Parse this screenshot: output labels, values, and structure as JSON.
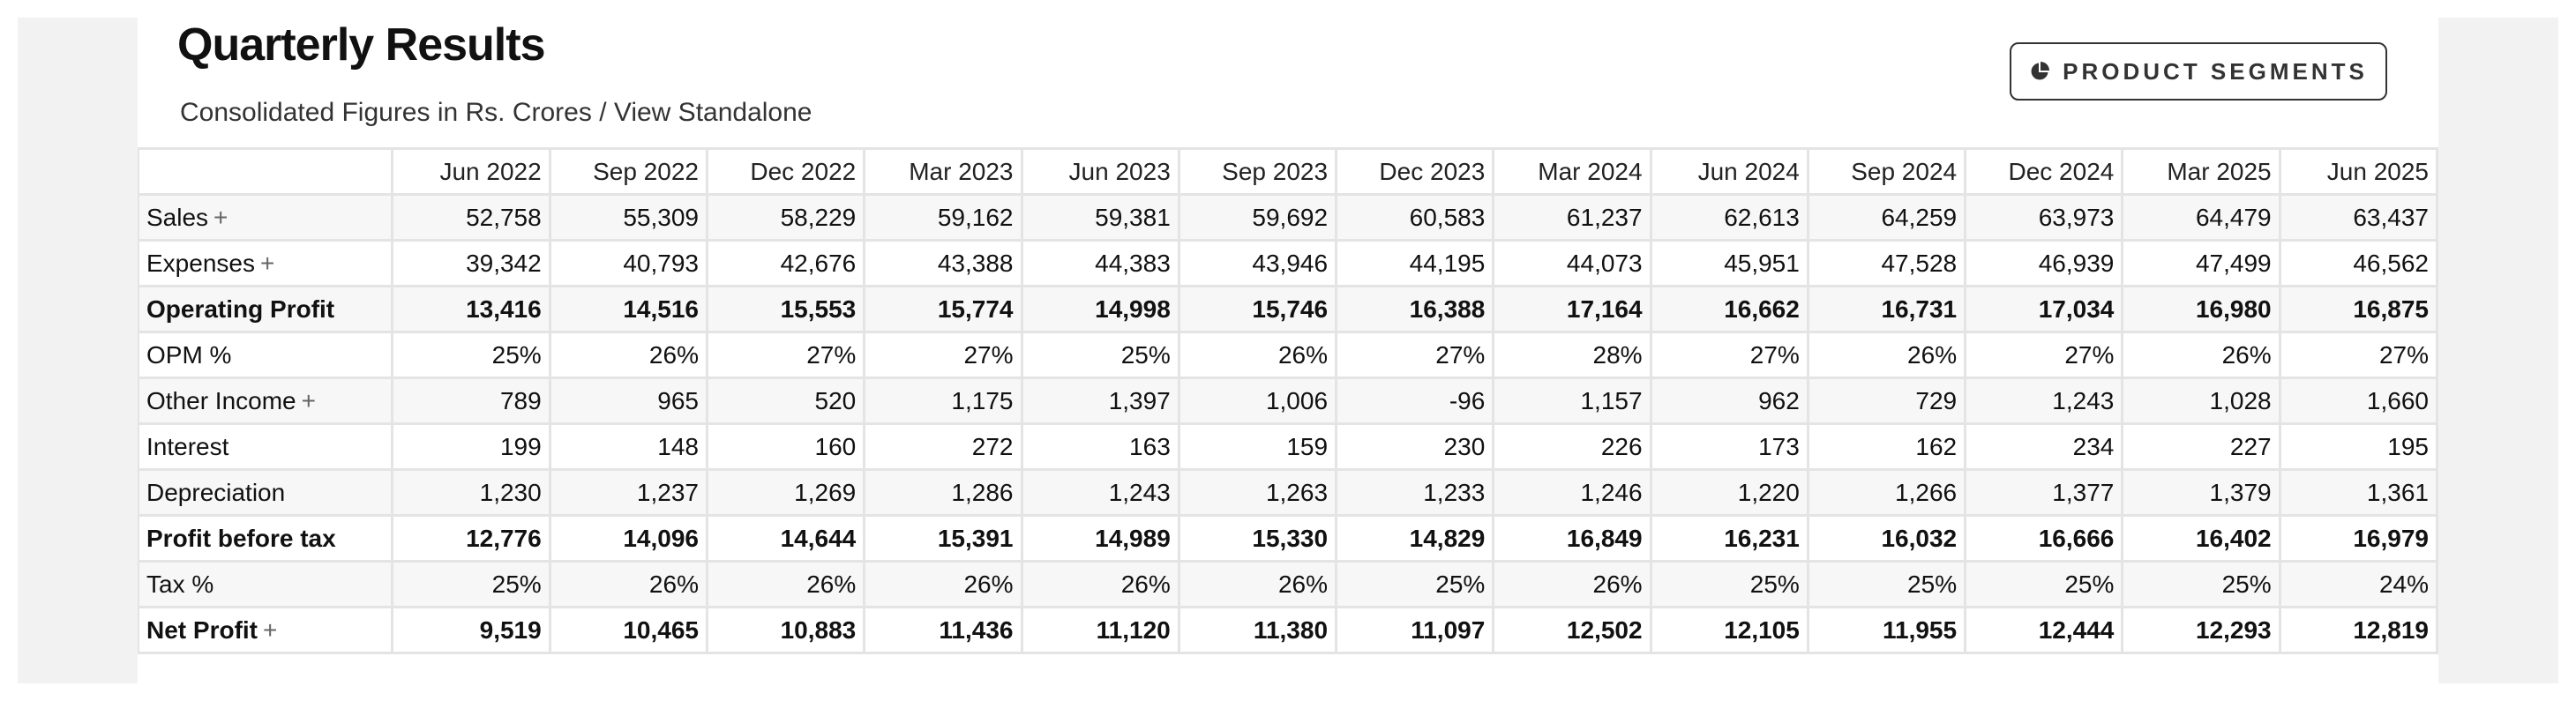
{
  "header": {
    "title": "Quarterly Results",
    "subtitle": "Consolidated Figures in Rs. Crores / View Standalone",
    "segments_button": "PRODUCT SEGMENTS",
    "segments_icon": "pie-chart-icon"
  },
  "table": {
    "columns": [
      "Jun 2022",
      "Sep 2022",
      "Dec 2022",
      "Mar 2023",
      "Jun 2023",
      "Sep 2023",
      "Dec 2023",
      "Mar 2024",
      "Jun 2024",
      "Sep 2024",
      "Dec 2024",
      "Mar 2025",
      "Jun 2025"
    ],
    "rows": [
      {
        "label": "Sales",
        "expand": "+",
        "bold": false,
        "values": [
          "52,758",
          "55,309",
          "58,229",
          "59,162",
          "59,381",
          "59,692",
          "60,583",
          "61,237",
          "62,613",
          "64,259",
          "63,973",
          "64,479",
          "63,437"
        ]
      },
      {
        "label": "Expenses",
        "expand": "+",
        "bold": false,
        "values": [
          "39,342",
          "40,793",
          "42,676",
          "43,388",
          "44,383",
          "43,946",
          "44,195",
          "44,073",
          "45,951",
          "47,528",
          "46,939",
          "47,499",
          "46,562"
        ]
      },
      {
        "label": "Operating Profit",
        "expand": "",
        "bold": true,
        "values": [
          "13,416",
          "14,516",
          "15,553",
          "15,774",
          "14,998",
          "15,746",
          "16,388",
          "17,164",
          "16,662",
          "16,731",
          "17,034",
          "16,980",
          "16,875"
        ]
      },
      {
        "label": "OPM %",
        "expand": "",
        "bold": false,
        "values": [
          "25%",
          "26%",
          "27%",
          "27%",
          "25%",
          "26%",
          "27%",
          "28%",
          "27%",
          "26%",
          "27%",
          "26%",
          "27%"
        ]
      },
      {
        "label": "Other Income",
        "expand": "+",
        "bold": false,
        "values": [
          "789",
          "965",
          "520",
          "1,175",
          "1,397",
          "1,006",
          "-96",
          "1,157",
          "962",
          "729",
          "1,243",
          "1,028",
          "1,660"
        ]
      },
      {
        "label": "Interest",
        "expand": "",
        "bold": false,
        "values": [
          "199",
          "148",
          "160",
          "272",
          "163",
          "159",
          "230",
          "226",
          "173",
          "162",
          "234",
          "227",
          "195"
        ]
      },
      {
        "label": "Depreciation",
        "expand": "",
        "bold": false,
        "values": [
          "1,230",
          "1,237",
          "1,269",
          "1,286",
          "1,243",
          "1,263",
          "1,233",
          "1,246",
          "1,220",
          "1,266",
          "1,377",
          "1,379",
          "1,361"
        ]
      },
      {
        "label": "Profit before tax",
        "expand": "",
        "bold": true,
        "values": [
          "12,776",
          "14,096",
          "14,644",
          "15,391",
          "14,989",
          "15,330",
          "14,829",
          "16,849",
          "16,231",
          "16,032",
          "16,666",
          "16,402",
          "16,979"
        ]
      },
      {
        "label": "Tax %",
        "expand": "",
        "bold": false,
        "values": [
          "25%",
          "26%",
          "26%",
          "26%",
          "26%",
          "26%",
          "25%",
          "26%",
          "25%",
          "25%",
          "25%",
          "25%",
          "24%"
        ]
      },
      {
        "label": "Net Profit",
        "expand": "+",
        "bold": true,
        "values": [
          "9,519",
          "10,465",
          "10,883",
          "11,436",
          "11,120",
          "11,380",
          "11,097",
          "12,502",
          "12,105",
          "11,955",
          "12,444",
          "12,293",
          "12,819"
        ]
      }
    ]
  }
}
